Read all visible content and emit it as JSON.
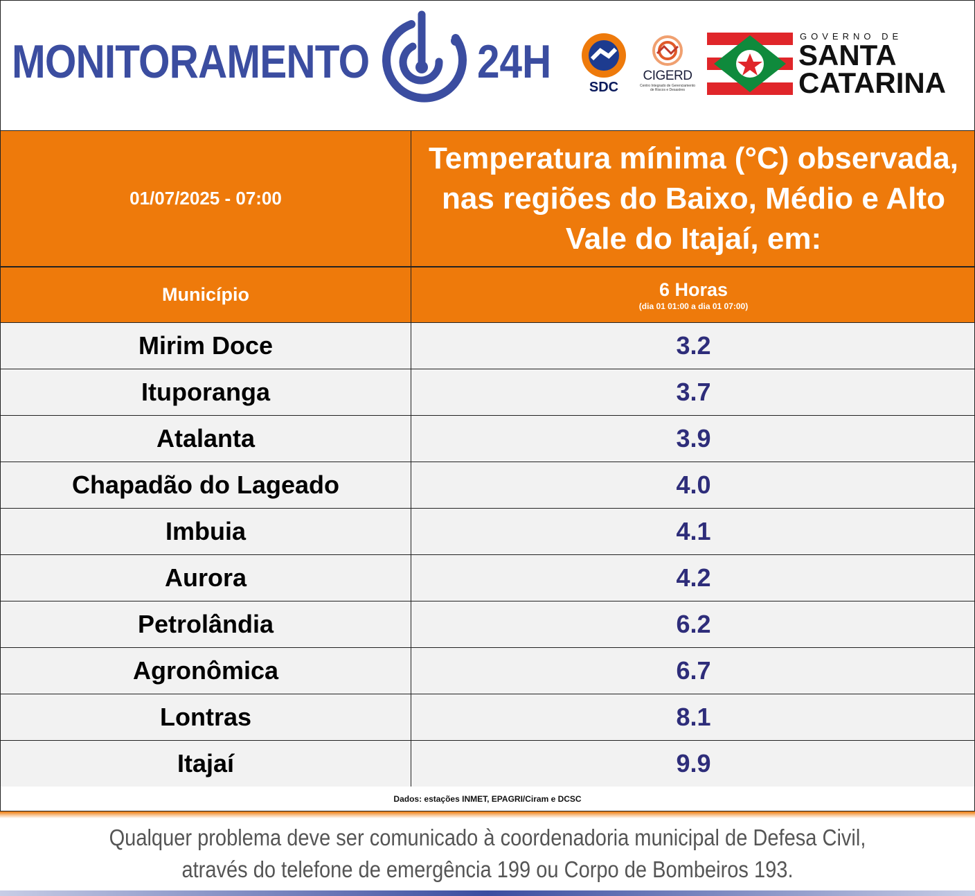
{
  "header": {
    "brand_left": "MONITORAMENTO",
    "brand_right": "24H",
    "sdc_label": "SDC",
    "cigerd_label": "CIGERD",
    "cigerd_sub": "Centro Integrado de Gerenciamento de Riscos e Desastres",
    "gov_label": "GOVERNO DE",
    "gov_state_line1": "SANTA",
    "gov_state_line2": "CATARINA"
  },
  "table": {
    "datetime": "01/07/2025 - 07:00",
    "title": "Temperatura mínima (°C) observada, nas regiões do Baixo, Médio e Alto Vale do Itajaí, em:",
    "col_municipio": "Município",
    "col_hours": "6 Horas",
    "col_hours_sub": "(dia 01 01:00 a dia 01 07:00)",
    "rows": [
      {
        "name": "Mirim Doce",
        "value": "3.2"
      },
      {
        "name": "Ituporanga",
        "value": "3.7"
      },
      {
        "name": "Atalanta",
        "value": "3.9"
      },
      {
        "name": "Chapadão do Lageado",
        "value": "4.0"
      },
      {
        "name": "Imbuia",
        "value": "4.1"
      },
      {
        "name": "Aurora",
        "value": "4.2"
      },
      {
        "name": "Petrolândia",
        "value": "6.2"
      },
      {
        "name": "Agronômica",
        "value": "6.7"
      },
      {
        "name": "Lontras",
        "value": "8.1"
      },
      {
        "name": "Itajaí",
        "value": "9.9"
      }
    ],
    "source": "Dados: estações INMET, EPAGRI/Ciram e DCSC"
  },
  "footer": {
    "line1": "Qualquer problema deve ser comunicado à coordenadoria municipal de Defesa Civil,",
    "line2": "através do telefone de emergência 199 ou Corpo de Bombeiros 193."
  },
  "colors": {
    "orange": "#ee7a0b",
    "brand_blue": "#3b4da0",
    "value_blue": "#2e2d7a",
    "row_bg": "#f2f2f2"
  }
}
